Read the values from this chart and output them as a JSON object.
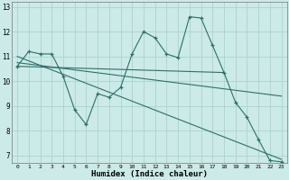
{
  "background_color": "#cceae7",
  "grid_color": "#aad4d0",
  "line_color": "#2d7068",
  "xlabel": "Humidex (Indice chaleur)",
  "ylim": [
    6.7,
    13.2
  ],
  "xlim": [
    -0.5,
    23.5
  ],
  "yticks": [
    7,
    8,
    9,
    10,
    11,
    12,
    13
  ],
  "xticks": [
    0,
    1,
    2,
    3,
    4,
    5,
    6,
    7,
    8,
    9,
    10,
    11,
    12,
    13,
    14,
    15,
    16,
    17,
    18,
    19,
    20,
    21,
    22,
    23
  ],
  "series1_x": [
    0,
    1,
    2,
    3,
    4,
    5,
    6,
    7,
    8,
    9,
    10,
    11,
    12,
    13,
    14,
    15,
    16,
    17,
    18,
    19,
    20,
    21,
    22,
    23
  ],
  "series1_y": [
    10.6,
    11.2,
    11.1,
    11.1,
    10.2,
    8.85,
    8.25,
    9.5,
    9.35,
    9.75,
    11.1,
    12.0,
    11.75,
    11.1,
    10.95,
    12.6,
    12.55,
    11.45,
    10.35,
    9.15,
    8.55,
    7.65,
    6.8,
    6.75
  ],
  "series2_x": [
    0,
    18
  ],
  "series2_y": [
    10.6,
    10.35
  ],
  "series3_x": [
    0,
    23
  ],
  "series3_y": [
    11.0,
    6.85
  ],
  "series4_x": [
    0,
    23
  ],
  "series4_y": [
    10.75,
    9.4
  ]
}
